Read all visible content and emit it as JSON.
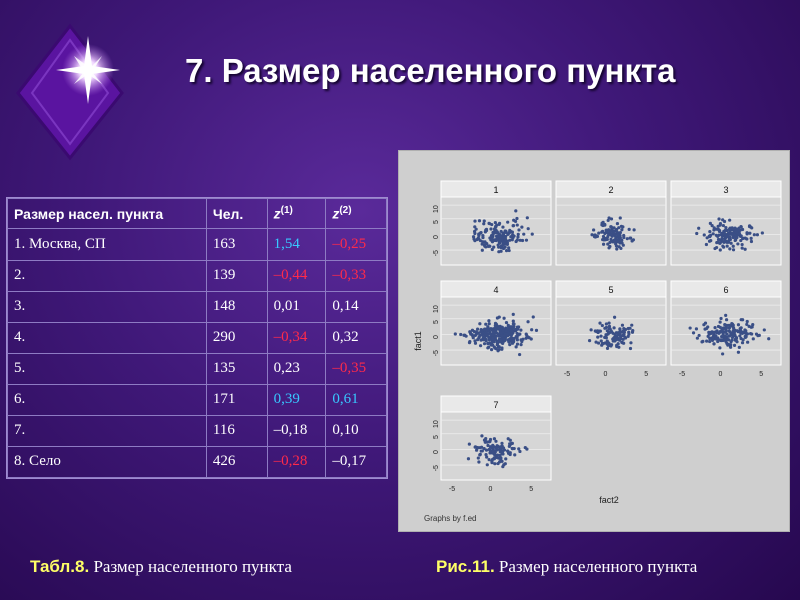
{
  "title": "7. Размер населенного пункта",
  "table": {
    "headers": [
      "Размер насел. пункта",
      "Чел.",
      "z",
      "z"
    ],
    "header_sups": [
      "",
      "",
      "(1)",
      "(2)"
    ],
    "rows": [
      {
        "label": "1. Москва, СП",
        "count": "163",
        "z1": "1,54",
        "z2": "–0,25",
        "z1_color": "cyan",
        "z2_color": "red"
      },
      {
        "label": "2.",
        "count": "139",
        "z1": "–0,44",
        "z2": "–0,33",
        "z1_color": "red",
        "z2_color": "red"
      },
      {
        "label": "3.",
        "count": "148",
        "z1": "0,01",
        "z2": "0,14",
        "z1_color": "",
        "z2_color": ""
      },
      {
        "label": "4.",
        "count": "290",
        "z1": "–0,34",
        "z2": "0,32",
        "z1_color": "red",
        "z2_color": ""
      },
      {
        "label": "5.",
        "count": "135",
        "z1": "0,23",
        "z2": "–0,35",
        "z1_color": "",
        "z2_color": "red"
      },
      {
        "label": "6.",
        "count": "171",
        "z1": "0,39",
        "z2": "0,61",
        "z1_color": "cyan",
        "z2_color": "cyan"
      },
      {
        "label": "7.",
        "count": "116",
        "z1": "–0,18",
        "z2": "0,10",
        "z1_color": "",
        "z2_color": ""
      },
      {
        "label": "8.  Село",
        "count": "426",
        "z1": "–0,28",
        "z2": "–0,17",
        "z1_color": "red",
        "z2_color": ""
      }
    ]
  },
  "figure": {
    "panels": [
      "1",
      "2",
      "3",
      "4",
      "5",
      "6",
      "7"
    ],
    "y_ticks": [
      "-5",
      "0",
      "5",
      "10"
    ],
    "x_ticks": [
      "-5",
      "0",
      "5"
    ],
    "xlabel": "fact2",
    "ylabel": "fact1",
    "footer": "Graphs by f.ed",
    "point_color": "#3a4f86"
  },
  "caption_left": {
    "bold": "Табл.8.",
    "text": " Размер населенного пункта"
  },
  "caption_right": {
    "bold": "Рис.11.",
    "text": " Размер населенного пункта"
  },
  "colors": {
    "cyan": "#38c8ff",
    "red": "#ff2a4a"
  }
}
